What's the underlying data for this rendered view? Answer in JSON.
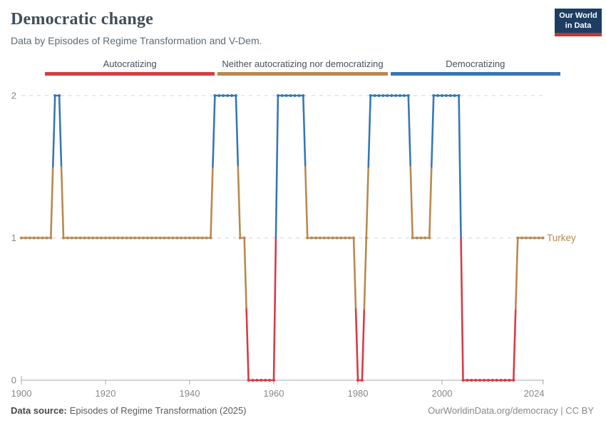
{
  "header": {
    "title": "Democratic change",
    "subtitle": "Data by Episodes of Regime Transformation and V-Dem.",
    "logo": {
      "line1": "Our World",
      "line2": "in Data"
    }
  },
  "legend": {
    "items": [
      {
        "label": "Autocratizing",
        "color": "#d93a45"
      },
      {
        "label": "Neither autocratizing nor democratizing",
        "color": "#b8894f"
      },
      {
        "label": "Democratizing",
        "color": "#3877b4"
      }
    ]
  },
  "chart_data": {
    "type": "line",
    "title": "Democratic change",
    "entity": "Turkey",
    "series_label": "Turkey",
    "xlabel": "",
    "ylabel": "",
    "xlim": [
      1900,
      2024
    ],
    "ylim": [
      0,
      2
    ],
    "grid": "dashed horizontal gridlines at y=1 and y=2, solid axis at y=0",
    "x_ticks": [
      1900,
      1920,
      1940,
      1960,
      1980,
      2000,
      2024
    ],
    "y_ticks": [
      0,
      1,
      2
    ],
    "value_meaning": {
      "0": "Autocratizing",
      "1": "Neither autocratizing nor democratizing",
      "2": "Democratizing"
    },
    "colors_by_value": {
      "0": "#d93a45",
      "1": "#b8894f",
      "2": "#3877b4"
    },
    "segments": [
      {
        "from": 1900,
        "to": 1907,
        "value": 1
      },
      {
        "from": 1908,
        "to": 1909,
        "value": 2
      },
      {
        "from": 1910,
        "to": 1945,
        "value": 1
      },
      {
        "from": 1946,
        "to": 1951,
        "value": 2
      },
      {
        "from": 1952,
        "to": 1953,
        "value": 1
      },
      {
        "from": 1954,
        "to": 1960,
        "value": 0
      },
      {
        "from": 1961,
        "to": 1967,
        "value": 2
      },
      {
        "from": 1968,
        "to": 1979,
        "value": 1
      },
      {
        "from": 1980,
        "to": 1981,
        "value": 0
      },
      {
        "from": 1982,
        "to": 1982,
        "value": 1
      },
      {
        "from": 1983,
        "to": 1992,
        "value": 2
      },
      {
        "from": 1993,
        "to": 1997,
        "value": 1
      },
      {
        "from": 1998,
        "to": 2004,
        "value": 2
      },
      {
        "from": 2005,
        "to": 2017,
        "value": 0
      },
      {
        "from": 2018,
        "to": 2024,
        "value": 1
      }
    ]
  },
  "footer": {
    "source_label": "Data source:",
    "source_text": "Episodes of Regime Transformation (2025)",
    "credit": "OurWorldinData.org/democracy | CC BY"
  }
}
